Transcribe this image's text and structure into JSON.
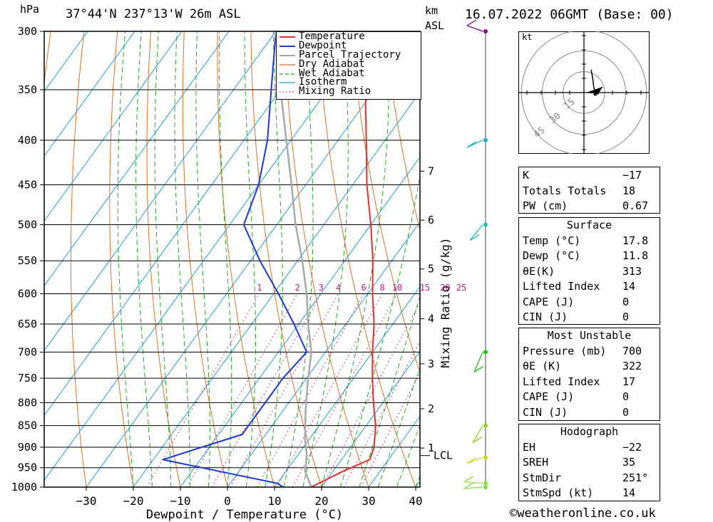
{
  "header": {
    "pressure_unit": "hPa",
    "location": "37°44'N  237°13'W  26m  ASL",
    "km_label": "km",
    "asl_label": "ASL",
    "datetime": "16.07.2022  06GMT  (Base: 00)"
  },
  "chart_data": {
    "type": "line",
    "xlabel": "Dewpoint / Temperature (°C)",
    "y2label": "Mixing Ratio (g/kg)",
    "x_ticks": [
      "−30",
      "−20",
      "−10",
      "0",
      "10",
      "20",
      "30",
      "40"
    ],
    "xlim": [
      -40,
      40
    ],
    "pressure_levels": [
      300,
      350,
      400,
      450,
      500,
      550,
      600,
      650,
      700,
      750,
      800,
      850,
      900,
      950,
      1000
    ],
    "pressure_tick_labels": [
      "300",
      "350",
      "400",
      "450",
      "500",
      "550",
      "600",
      "650",
      "700",
      "750",
      "800",
      "850",
      "900",
      "950",
      "1000"
    ],
    "height_km_ticks": [
      {
        "km": "7",
        "p": 434
      },
      {
        "km": "6",
        "p": 494
      },
      {
        "km": "5",
        "p": 562
      },
      {
        "km": "4",
        "p": 641
      },
      {
        "km": "3",
        "p": 722
      },
      {
        "km": "2",
        "p": 813
      },
      {
        "km": "1",
        "p": 902
      }
    ],
    "lcl": {
      "label": "LCL",
      "p": 920
    },
    "mixing_ratio_labels": [
      "1",
      "2",
      "3",
      "4",
      "6",
      "8",
      "10",
      "15",
      "20",
      "25"
    ],
    "mixing_ratio_values": [
      1,
      2,
      3,
      4,
      6,
      8,
      10,
      15,
      20,
      25
    ],
    "legend": [
      "Temperature",
      "Dewpoint",
      "Parcel Trajectory",
      "Dry Adiabat",
      "Wet Adiabat",
      "Isotherm",
      "Mixing Ratio"
    ],
    "colors": {
      "temperature": "#e03030",
      "dewpoint": "#1a3ad0",
      "parcel": "#a8a8a8",
      "dry_adiabat": "#e07020",
      "wet_adiabat": "#20b020",
      "isotherm": "#1ea0e0",
      "mixing_ratio": "#c02090"
    },
    "series": [
      {
        "name": "Temperature",
        "points": [
          [
            17.8,
            1000
          ],
          [
            22,
            960
          ],
          [
            26,
            930
          ],
          [
            25,
            900
          ],
          [
            22,
            850
          ],
          [
            18,
            800
          ],
          [
            14,
            750
          ],
          [
            10,
            700
          ],
          [
            6,
            650
          ],
          [
            1,
            600
          ],
          [
            -4,
            550
          ],
          [
            -10,
            500
          ],
          [
            -17,
            450
          ],
          [
            -24,
            400
          ],
          [
            -32,
            350
          ],
          [
            -41,
            300
          ]
        ]
      },
      {
        "name": "Dewpoint",
        "points": [
          [
            11.8,
            1000
          ],
          [
            10,
            990
          ],
          [
            -18,
            930
          ],
          [
            -5,
            870
          ],
          [
            -5,
            850
          ],
          [
            -5,
            800
          ],
          [
            -5,
            750
          ],
          [
            -4,
            700
          ],
          [
            -11,
            650
          ],
          [
            -19,
            600
          ],
          [
            -28,
            550
          ],
          [
            -37,
            500
          ],
          [
            -40,
            450
          ],
          [
            -45,
            400
          ],
          [
            -52,
            350
          ],
          [
            -60,
            300
          ]
        ]
      },
      {
        "name": "Parcel Trajectory",
        "points": [
          [
            17.8,
            1000
          ],
          [
            14,
            958
          ],
          [
            12,
            920
          ],
          [
            9,
            880
          ],
          [
            5,
            820
          ],
          [
            1,
            760
          ],
          [
            -3,
            700
          ],
          [
            -8,
            650
          ],
          [
            -13,
            600
          ],
          [
            -19,
            550
          ],
          [
            -26,
            500
          ],
          [
            -33,
            450
          ],
          [
            -41,
            400
          ],
          [
            -50,
            350
          ],
          [
            -60,
            300
          ]
        ]
      }
    ]
  },
  "hodograph": {
    "unit": "kt",
    "ring_labels": [
      "15",
      "30",
      "45"
    ]
  },
  "wind_barbs_present": true,
  "indices": {
    "rows": [
      {
        "k": "K",
        "v": "−17"
      },
      {
        "k": "Totals Totals",
        "v": "18"
      },
      {
        "k": "PW (cm)",
        "v": "0.67"
      }
    ]
  },
  "surface": {
    "title": "Surface",
    "rows": [
      {
        "k": "Temp (°C)",
        "v": "17.8"
      },
      {
        "k": "Dewp (°C)",
        "v": "11.8"
      },
      {
        "k": "θE(K)",
        "v": "313"
      },
      {
        "k": "Lifted Index",
        "v": "14"
      },
      {
        "k": "CAPE (J)",
        "v": "0"
      },
      {
        "k": "CIN (J)",
        "v": "0"
      }
    ]
  },
  "most_unstable": {
    "title": "Most Unstable",
    "rows": [
      {
        "k": "Pressure (mb)",
        "v": "700"
      },
      {
        "k": "θE (K)",
        "v": "322"
      },
      {
        "k": "Lifted Index",
        "v": "17"
      },
      {
        "k": "CAPE (J)",
        "v": "0"
      },
      {
        "k": "CIN (J)",
        "v": "0"
      }
    ]
  },
  "hodograph_table": {
    "title": "Hodograph",
    "rows": [
      {
        "k": "EH",
        "v": "−22"
      },
      {
        "k": "SREH",
        "v": "35"
      },
      {
        "k": "StmDir",
        "v": "251°"
      },
      {
        "k": "StmSpd (kt)",
        "v": "14"
      }
    ]
  },
  "footer": {
    "credit": "©weatheronline.co.uk"
  }
}
